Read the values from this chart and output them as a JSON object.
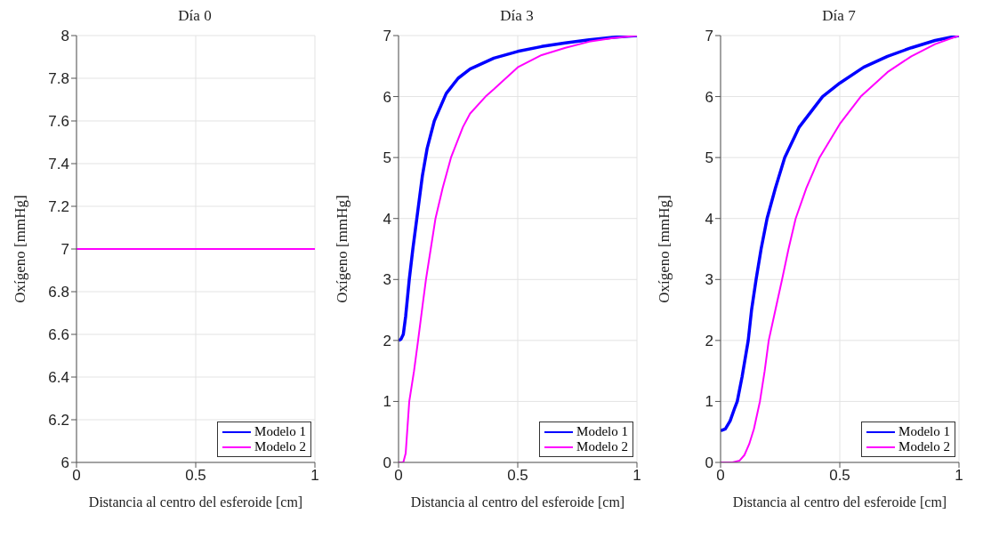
{
  "chart_data": [
    {
      "type": "line",
      "title": "Día 0",
      "xlabel": "Distancia al centro del esferoide [cm]",
      "ylabel": "Oxígeno [mmHg]",
      "xlim": [
        0,
        1
      ],
      "xticks": [
        0,
        0.5,
        1
      ],
      "ylim": [
        6,
        8
      ],
      "yticks": [
        6,
        6.2,
        6.4,
        6.6,
        6.8,
        7,
        7.2,
        7.4,
        7.6,
        7.8,
        8
      ],
      "grid": true,
      "legend": "bottom right",
      "series": [
        {
          "name": "Modelo 1",
          "color": "#0000ff"
        },
        {
          "name": "Modelo 2",
          "color": "#ff00ff",
          "x": [
            0,
            1
          ],
          "values": [
            7,
            7
          ]
        }
      ]
    },
    {
      "type": "line",
      "title": "Día 3",
      "xlabel": "Distancia al centro del esferoide [cm]",
      "ylabel": "Oxígeno [mmHg]",
      "xlim": [
        0,
        1
      ],
      "xticks": [
        0,
        0.5,
        1
      ],
      "ylim": [
        0,
        7
      ],
      "yticks": [
        0,
        1,
        2,
        3,
        4,
        5,
        6,
        7
      ],
      "grid": true,
      "legend": "bottom right",
      "series": [
        {
          "name": "Modelo 1",
          "color": "#0000ff",
          "x": [
            0,
            0.01,
            0.02,
            0.03,
            0.045,
            0.06,
            0.08,
            0.1,
            0.12,
            0.15,
            0.2,
            0.25,
            0.3,
            0.4,
            0.5,
            0.6,
            0.7,
            0.8,
            0.9,
            1
          ],
          "values": [
            2,
            2.02,
            2.1,
            2.4,
            3,
            3.5,
            4.1,
            4.7,
            5.15,
            5.6,
            6.05,
            6.3,
            6.45,
            6.63,
            6.74,
            6.82,
            6.88,
            6.93,
            6.97,
            7
          ]
        },
        {
          "name": "Modelo 2",
          "color": "#ff00ff",
          "x": [
            0,
            0.02,
            0.03,
            0.045,
            0.065,
            0.082,
            0.1,
            0.115,
            0.135,
            0.155,
            0.185,
            0.22,
            0.27,
            0.3,
            0.365,
            0.4,
            0.5,
            0.6,
            0.7,
            0.8,
            0.9,
            1
          ],
          "values": [
            0,
            0,
            0.15,
            1,
            1.5,
            2,
            2.55,
            3,
            3.5,
            4,
            4.5,
            5,
            5.5,
            5.72,
            6,
            6.12,
            6.48,
            6.68,
            6.8,
            6.9,
            6.96,
            7
          ]
        }
      ]
    },
    {
      "type": "line",
      "title": "Día 7",
      "xlabel": "Distancia al centro del esferoide [cm]",
      "ylabel": "Oxígeno [mmHg]",
      "xlim": [
        0,
        1
      ],
      "xticks": [
        0,
        0.5,
        1
      ],
      "ylim": [
        0,
        7
      ],
      "yticks": [
        0,
        1,
        2,
        3,
        4,
        5,
        6,
        7
      ],
      "grid": true,
      "legend": "bottom right",
      "series": [
        {
          "name": "Modelo 1",
          "color": "#0000ff",
          "x": [
            0,
            0.02,
            0.04,
            0.06,
            0.07,
            0.09,
            0.116,
            0.13,
            0.149,
            0.17,
            0.195,
            0.23,
            0.269,
            0.33,
            0.428,
            0.5,
            0.6,
            0.7,
            0.8,
            0.9,
            1
          ],
          "values": [
            0.52,
            0.55,
            0.68,
            0.9,
            1,
            1.4,
            2,
            2.5,
            3,
            3.5,
            4,
            4.5,
            5,
            5.5,
            6,
            6.22,
            6.48,
            6.66,
            6.8,
            6.92,
            7
          ]
        },
        {
          "name": "Modelo 2",
          "color": "#ff00ff",
          "x": [
            0,
            0.05,
            0.08,
            0.1,
            0.12,
            0.14,
            0.165,
            0.185,
            0.202,
            0.23,
            0.258,
            0.285,
            0.315,
            0.36,
            0.415,
            0.5,
            0.588,
            0.7,
            0.8,
            0.9,
            1
          ],
          "values": [
            0,
            0,
            0.03,
            0.12,
            0.3,
            0.55,
            1,
            1.5,
            2,
            2.5,
            3,
            3.5,
            4,
            4.5,
            5,
            5.55,
            6,
            6.4,
            6.66,
            6.86,
            7
          ]
        }
      ]
    }
  ]
}
